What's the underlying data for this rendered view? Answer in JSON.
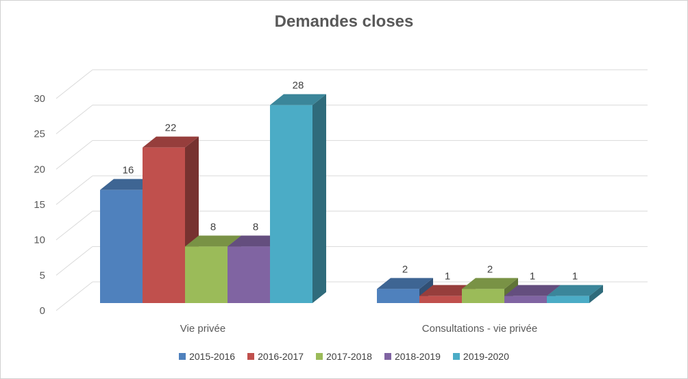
{
  "chart_data": {
    "type": "bar",
    "title": "Demandes closes",
    "categories": [
      "Vie privée",
      "Consultations - vie privée"
    ],
    "series": [
      {
        "name": "2015-2016",
        "values": [
          16,
          2
        ],
        "color": "#4f81bd"
      },
      {
        "name": "2016-2017",
        "values": [
          22,
          1
        ],
        "color": "#c0504d"
      },
      {
        "name": "2017-2018",
        "values": [
          8,
          2
        ],
        "color": "#9bbb59"
      },
      {
        "name": "2018-2019",
        "values": [
          8,
          1
        ],
        "color": "#8064a2"
      },
      {
        "name": "2019-2020",
        "values": [
          28,
          1
        ],
        "color": "#4bacc6"
      }
    ],
    "ylim": [
      0,
      30
    ],
    "yticks": [
      0,
      5,
      10,
      15,
      20,
      25,
      30
    ],
    "grid": true,
    "legend_position": "bottom",
    "style": "3d-clustered-column"
  }
}
